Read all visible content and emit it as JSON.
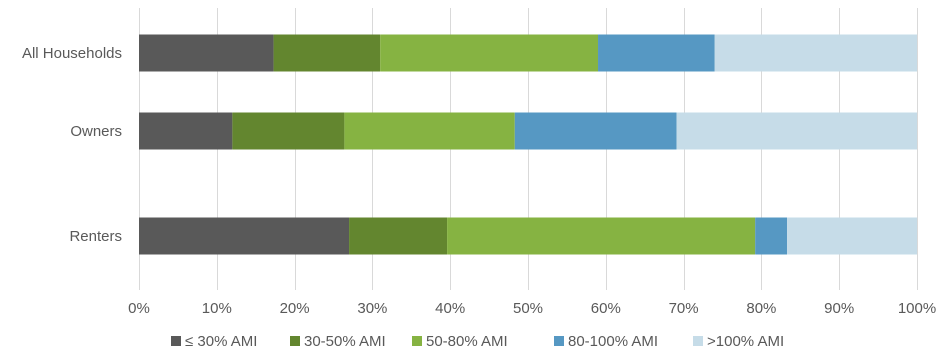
{
  "chart_data": {
    "type": "bar",
    "orientation": "horizontal",
    "stacked": true,
    "title": "",
    "xlabel": "",
    "ylabel": "",
    "categories": [
      "All Households",
      "Owners",
      "Renters"
    ],
    "xlim": [
      0,
      100
    ],
    "x_ticks": [
      "0%",
      "10%",
      "20%",
      "30%",
      "40%",
      "50%",
      "60%",
      "70%",
      "80%",
      "90%",
      "100%"
    ],
    "grid": "vertical",
    "legend_position": "bottom",
    "series": [
      {
        "name": "≤ 30% AMI",
        "color": "#595959",
        "values": [
          17.3,
          12.0,
          27.0
        ]
      },
      {
        "name": "30-50% AMI",
        "color": "#63862f",
        "values": [
          13.7,
          14.4,
          12.6
        ]
      },
      {
        "name": "50-80% AMI",
        "color": "#86b342",
        "values": [
          28.0,
          21.9,
          39.6
        ]
      },
      {
        "name": "80-100% AMI",
        "color": "#5698c3",
        "values": [
          15.0,
          20.8,
          4.1
        ]
      },
      {
        "name": ">100% AMI",
        "color": "#c6dce8",
        "values": [
          26.0,
          30.9,
          16.7
        ]
      }
    ]
  }
}
